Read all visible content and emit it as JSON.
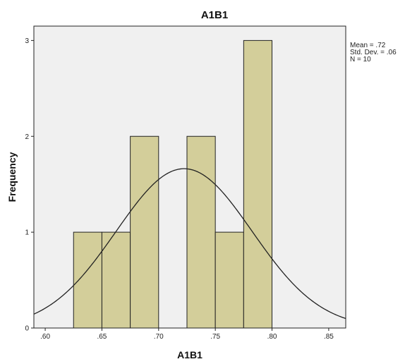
{
  "chart_data": {
    "type": "bar",
    "title": "A1B1",
    "xlabel": "A1B1",
    "ylabel": "Frequency",
    "xlim": [
      0.59,
      0.865
    ],
    "ylim": [
      0,
      3.15
    ],
    "x_ticks": [
      0.6,
      0.65,
      0.7,
      0.75,
      0.8,
      0.85
    ],
    "x_tick_labels": [
      ".60",
      ".65",
      ".70",
      ".75",
      ".80",
      ".85"
    ],
    "y_ticks": [
      0,
      1,
      2,
      3
    ],
    "y_tick_labels": [
      "0",
      "1",
      "2",
      "3"
    ],
    "bins": [
      {
        "x0": 0.625,
        "x1": 0.65,
        "count": 1
      },
      {
        "x0": 0.65,
        "x1": 0.675,
        "count": 1
      },
      {
        "x0": 0.675,
        "x1": 0.7,
        "count": 2
      },
      {
        "x0": 0.7,
        "x1": 0.725,
        "count": 0
      },
      {
        "x0": 0.725,
        "x1": 0.75,
        "count": 2
      },
      {
        "x0": 0.75,
        "x1": 0.775,
        "count": 1
      },
      {
        "x0": 0.775,
        "x1": 0.8,
        "count": 3
      }
    ],
    "normal_curve": {
      "mean": 0.7225,
      "std_dev": 0.06,
      "n": 10,
      "bin_width": 0.025
    },
    "stats_lines": [
      "Mean = .72",
      "Std. Dev. = .06",
      "N = 10"
    ],
    "grid": false,
    "colors": {
      "bar_fill": "#d3ce9a",
      "bar_stroke": "#222222",
      "plot_bg": "#f0f0f0",
      "curve": "#222222"
    }
  }
}
